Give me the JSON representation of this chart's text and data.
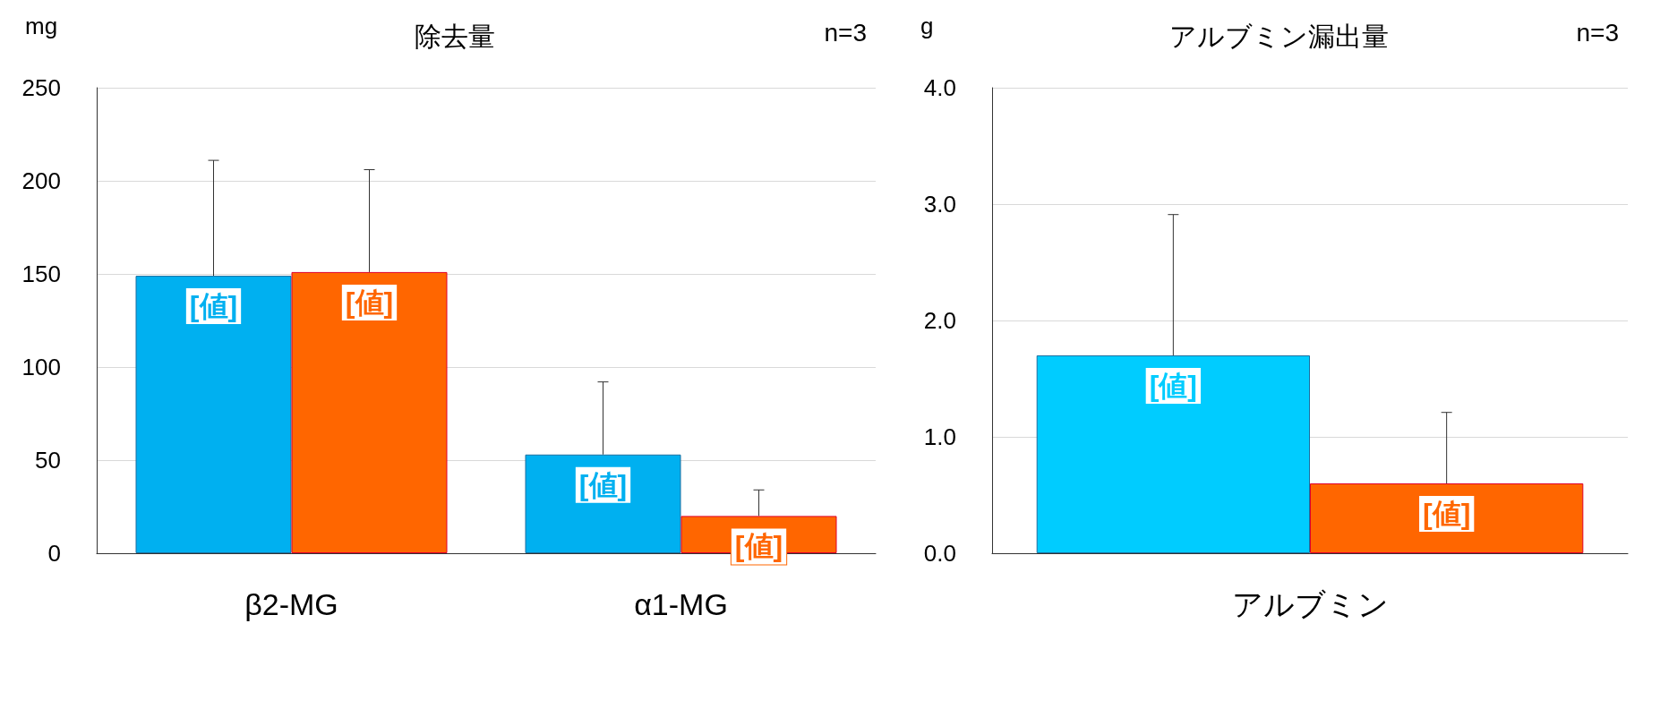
{
  "chart_data": [
    {
      "type": "bar",
      "title": "除去量",
      "ylabel": "mg",
      "annotations": [
        "n=3"
      ],
      "categories": [
        "β2-MG",
        "α1-MG"
      ],
      "ylim": [
        0,
        250
      ],
      "yticks": [
        0,
        50,
        100,
        150,
        200,
        250
      ],
      "grid": "y",
      "series": [
        {
          "color": "#00b0f0",
          "values": [
            149,
            53
          ],
          "errors": [
            [
              149,
              211
            ],
            [
              53,
              92
            ]
          ],
          "value_labels": [
            "[値]",
            "[値]"
          ]
        },
        {
          "color": "#ff6600",
          "values": [
            151,
            20
          ],
          "errors": [
            [
              151,
              206
            ],
            [
              20,
              34
            ]
          ],
          "value_labels": [
            "[値]",
            "[値]"
          ]
        }
      ]
    },
    {
      "type": "bar",
      "title": "アルブミン漏出量",
      "ylabel": "g",
      "annotations": [
        "n=3"
      ],
      "categories": [
        "アルブミン"
      ],
      "ylim": [
        0,
        4
      ],
      "yticks": [
        {
          "value": 0,
          "label": "0.0"
        },
        {
          "value": 1,
          "label": "1.0"
        },
        {
          "value": 2,
          "label": "2.0"
        },
        {
          "value": 3,
          "label": "3.0"
        },
        {
          "value": 4,
          "label": "4.0"
        }
      ],
      "grid": "y",
      "series": [
        {
          "color": "#00ccff",
          "values": [
            1.7
          ],
          "errors": [
            [
              1.7,
              2.91
            ]
          ],
          "value_labels": [
            "[値]"
          ]
        },
        {
          "color": "#ff6600",
          "values": [
            0.6
          ],
          "errors": [
            [
              0.6,
              1.21
            ]
          ],
          "value_labels": [
            "[値]"
          ]
        }
      ]
    }
  ]
}
